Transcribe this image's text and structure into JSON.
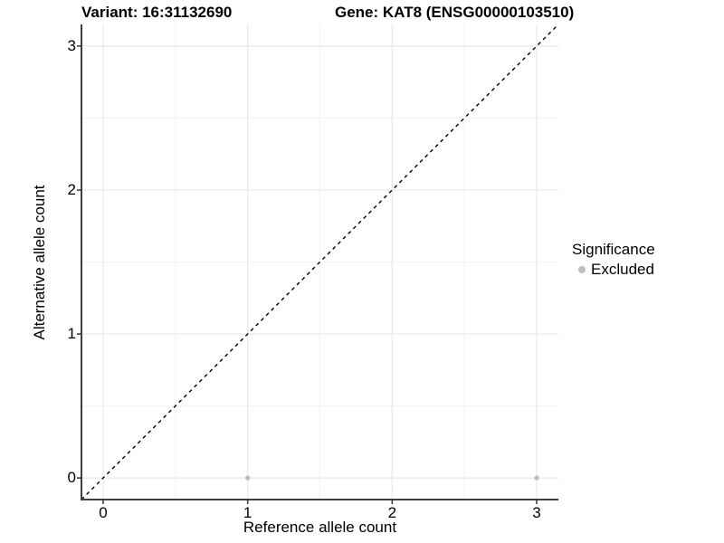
{
  "title": {
    "variant": "Variant: 16:31132690",
    "gene": "Gene: KAT8 (ENSG00000103510)"
  },
  "axes": {
    "x_label": "Reference allele count",
    "y_label": "Alternative allele count"
  },
  "legend": {
    "title": "Significance",
    "items": [
      {
        "label": "Excluded",
        "color": "#bdbdbd"
      }
    ]
  },
  "chart_data": {
    "type": "scatter",
    "title": "Variant: 16:31132690 | Gene: KAT8 (ENSG00000103510)",
    "xlabel": "Reference allele count",
    "ylabel": "Alternative allele count",
    "xlim": [
      -0.15,
      3.15
    ],
    "ylim": [
      -0.15,
      3.15
    ],
    "x_ticks": [
      0,
      1,
      2,
      3
    ],
    "y_ticks": [
      0,
      1,
      2,
      3
    ],
    "minor_ticks": [
      0.5,
      1.5,
      2.5
    ],
    "grid": true,
    "legend_position": "right",
    "series": [
      {
        "name": "Excluded",
        "color": "#bdbdbd",
        "points": [
          {
            "x": 1,
            "y": 0
          },
          {
            "x": 3,
            "y": 0
          }
        ]
      }
    ],
    "reference_line": {
      "kind": "identity y=x",
      "style": "dashed",
      "color": "#000000",
      "from": [
        -0.15,
        -0.15
      ],
      "to": [
        3.15,
        3.15
      ]
    },
    "colors": {
      "background": "#ffffff",
      "grid_major": "#e7e7e7",
      "grid_minor": "#f2f2f2",
      "axis_line": "#404040",
      "tick_mark": "#333333",
      "point": "#bdbdbd",
      "dashed_line": "#000000"
    }
  }
}
